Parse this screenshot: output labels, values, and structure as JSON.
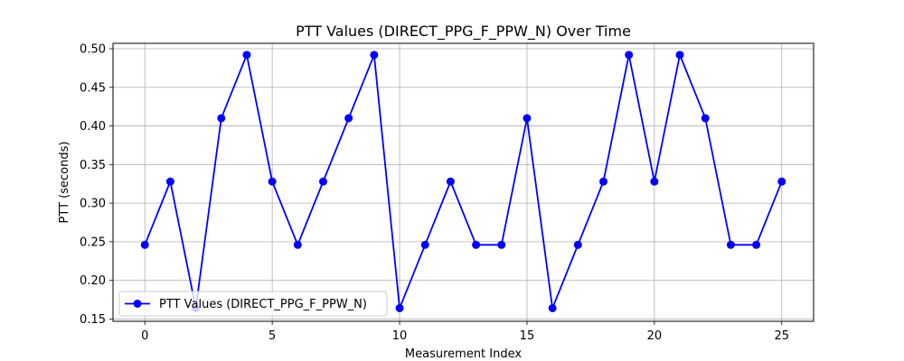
{
  "chart_data": {
    "type": "line",
    "title": "PTT Values (DIRECT_PPG_F_PPW_N) Over Time",
    "xlabel": "Measurement Index",
    "ylabel": "PTT (seconds)",
    "xlim": [
      -1.25,
      26.25
    ],
    "ylim": [
      0.147,
      0.507
    ],
    "xticks": [
      0,
      5,
      10,
      15,
      20,
      25
    ],
    "xtick_labels": [
      "0",
      "5",
      "10",
      "15",
      "20",
      "25"
    ],
    "yticks": [
      0.15,
      0.2,
      0.25,
      0.3,
      0.35,
      0.4,
      0.45,
      0.5
    ],
    "ytick_labels": [
      "0.15",
      "0.20",
      "0.25",
      "0.30",
      "0.35",
      "0.40",
      "0.45",
      "0.50"
    ],
    "grid": true,
    "legend_position": "lower-left",
    "series": [
      {
        "name": "PTT Values (DIRECT_PPG_F_PPW_N)",
        "color": "#0000ff",
        "marker": "circle",
        "x": [
          0,
          1,
          2,
          3,
          4,
          5,
          6,
          7,
          8,
          9,
          10,
          11,
          12,
          13,
          14,
          15,
          16,
          17,
          18,
          19,
          20,
          21,
          22,
          23,
          24,
          25
        ],
        "y": [
          0.246,
          0.328,
          0.164,
          0.41,
          0.492,
          0.328,
          0.246,
          0.328,
          0.41,
          0.492,
          0.164,
          0.246,
          0.328,
          0.246,
          0.246,
          0.41,
          0.164,
          0.246,
          0.328,
          0.492,
          0.328,
          0.492,
          0.41,
          0.246,
          0.246,
          0.328
        ]
      }
    ]
  }
}
